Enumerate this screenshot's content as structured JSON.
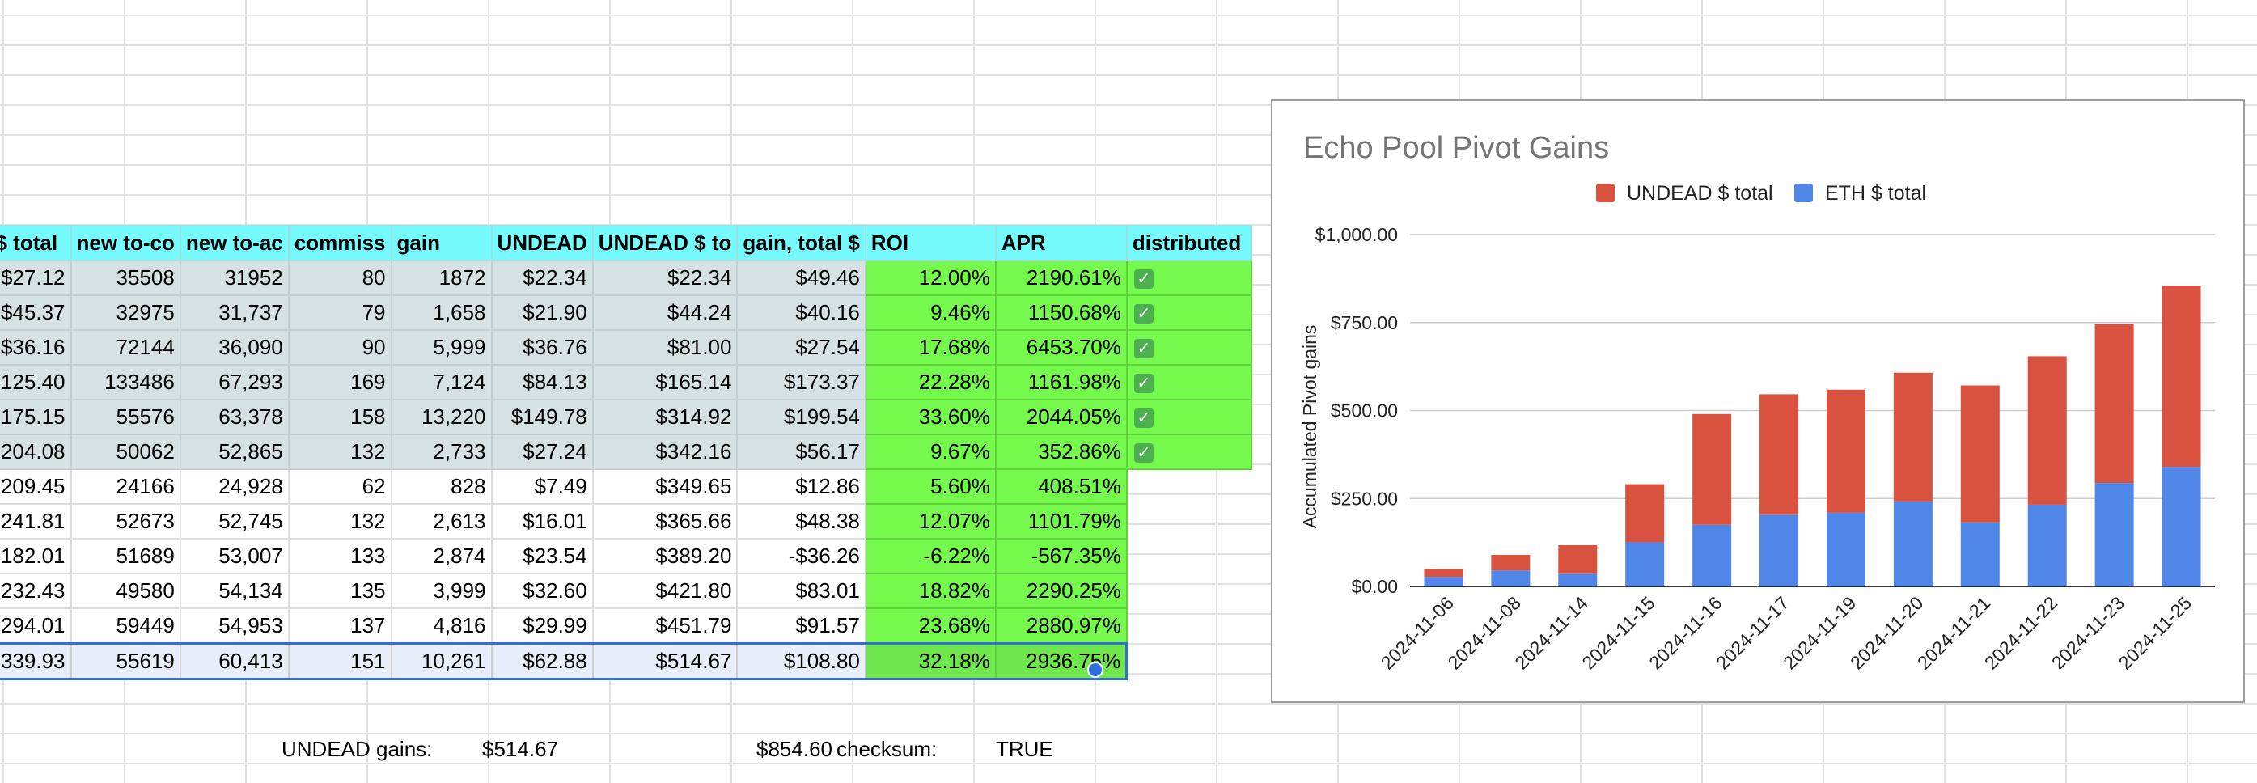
{
  "table": {
    "headers": [
      "$ total",
      "new to-co",
      "new to-ac",
      "commiss",
      "gain",
      "UNDEAD",
      "UNDEAD $ to",
      "gain, total $",
      "ROI",
      "APR",
      "distributed"
    ],
    "rows": [
      [
        "$27.12",
        "35508",
        "31952",
        "80",
        "1872",
        "$22.34",
        "$22.34",
        "$49.46",
        "12.00%",
        "2190.61%",
        true
      ],
      [
        "$45.37",
        "32975",
        "31,737",
        "79",
        "1,658",
        "$21.90",
        "$44.24",
        "$40.16",
        "9.46%",
        "1150.68%",
        true
      ],
      [
        "$36.16",
        "72144",
        "36,090",
        "90",
        "5,999",
        "$36.76",
        "$81.00",
        "$27.54",
        "17.68%",
        "6453.70%",
        true
      ],
      [
        "125.40",
        "133486",
        "67,293",
        "169",
        "7,124",
        "$84.13",
        "$165.14",
        "$173.37",
        "22.28%",
        "1161.98%",
        true
      ],
      [
        "175.15",
        "55576",
        "63,378",
        "158",
        "13,220",
        "$149.78",
        "$314.92",
        "$199.54",
        "33.60%",
        "2044.05%",
        true
      ],
      [
        "204.08",
        "50062",
        "52,865",
        "132",
        "2,733",
        "$27.24",
        "$342.16",
        "$56.17",
        "9.67%",
        "352.86%",
        true
      ],
      [
        "209.45",
        "24166",
        "24,928",
        "62",
        "828",
        "$7.49",
        "$349.65",
        "$12.86",
        "5.60%",
        "408.51%",
        false
      ],
      [
        "241.81",
        "52673",
        "52,745",
        "132",
        "2,613",
        "$16.01",
        "$365.66",
        "$48.38",
        "12.07%",
        "1101.79%",
        false
      ],
      [
        "182.01",
        "51689",
        "53,007",
        "133",
        "2,874",
        "$23.54",
        "$389.20",
        "-$36.26",
        "-6.22%",
        "-567.35%",
        false
      ],
      [
        "232.43",
        "49580",
        "54,134",
        "135",
        "3,999",
        "$32.60",
        "$421.80",
        "$83.01",
        "18.82%",
        "2290.25%",
        false
      ],
      [
        "294.01",
        "59449",
        "54,953",
        "137",
        "4,816",
        "$29.99",
        "$451.79",
        "$91.57",
        "23.68%",
        "2880.97%",
        false
      ],
      [
        "339.93",
        "55619",
        "60,413",
        "151",
        "10,261",
        "$62.88",
        "$514.67",
        "$108.80",
        "32.18%",
        "2936.75%",
        false
      ]
    ]
  },
  "summary": {
    "undead_gains_label": "UNDEAD gains:",
    "undead_gains_value": "$514.67",
    "total_value": "$854.60",
    "checksum_label": "checksum:",
    "checksum_value": "TRUE"
  },
  "chart_data": {
    "type": "bar",
    "stacked": true,
    "title": "Echo Pool Pivot Gains",
    "ylabel": "Accumulated Pivot gains",
    "xlabel": "",
    "categories": [
      "2024-11-06",
      "2024-11-08",
      "2024-11-14",
      "2024-11-15",
      "2024-11-16",
      "2024-11-17",
      "2024-11-19",
      "2024-11-20",
      "2024-11-21",
      "2024-11-22",
      "2024-11-23",
      "2024-11-25"
    ],
    "series": [
      {
        "name": "ETH $ total",
        "color": "#4f86e8",
        "values": [
          27.12,
          45.37,
          36.16,
          125.4,
          175.15,
          204.08,
          209.45,
          241.81,
          182.01,
          232.43,
          294.01,
          339.93
        ]
      },
      {
        "name": "UNDEAD $ total",
        "color": "#d9513f",
        "values": [
          22.34,
          44.24,
          81.0,
          165.14,
          314.92,
          342.16,
          349.65,
          365.66,
          389.2,
          421.8,
          451.79,
          514.67
        ]
      }
    ],
    "legend_order": [
      "UNDEAD $ total",
      "ETH $ total"
    ],
    "legend_position": "top",
    "yticks": [
      "$0.00",
      "$250.00",
      "$500.00",
      "$750.00",
      "$1,000.00"
    ],
    "ylim": [
      0,
      1000
    ],
    "grid": true
  }
}
